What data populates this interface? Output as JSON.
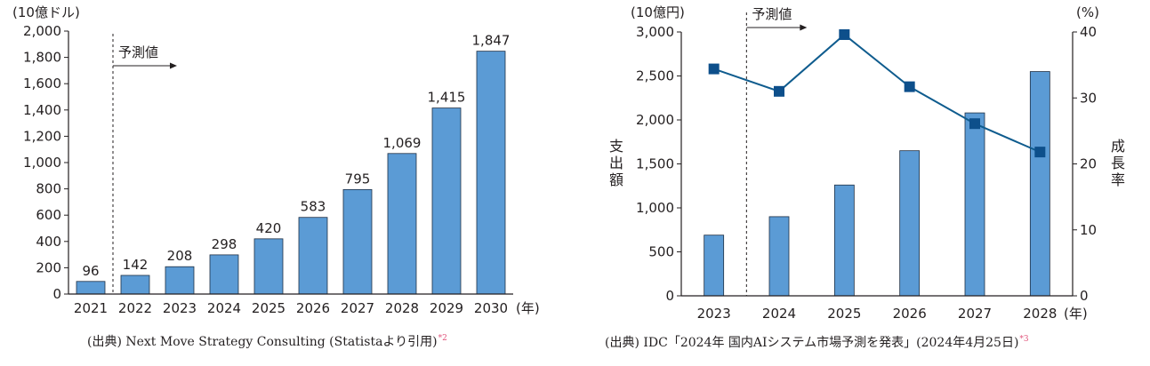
{
  "colors": {
    "bar": "#5b9bd5",
    "bar_stroke": "#1f2f44",
    "line": "#0f5c8e",
    "marker": "#0d4f8b",
    "text": "#231f20",
    "footnote": "#e0527a"
  },
  "chart_data": [
    {
      "type": "bar",
      "unit_label": "(10億ドル)",
      "categories": [
        "2021",
        "2022",
        "2023",
        "2024",
        "2025",
        "2026",
        "2027",
        "2028",
        "2029",
        "2030"
      ],
      "values": [
        96,
        142,
        208,
        298,
        420,
        583,
        795,
        1069,
        1415,
        1847
      ],
      "value_labels": [
        "96",
        "142",
        "208",
        "298",
        "420",
        "583",
        "795",
        "1,069",
        "1,415",
        "1,847"
      ],
      "x_unit": "(年)",
      "ylim": [
        0,
        2000
      ],
      "yticks": [
        0,
        200,
        400,
        600,
        800,
        1000,
        1200,
        1400,
        1600,
        1800,
        2000
      ],
      "ytick_labels": [
        "0",
        "200",
        "400",
        "600",
        "800",
        "1,000",
        "1,200",
        "1,400",
        "1,600",
        "1,800",
        "2,000"
      ],
      "forecast_label": "予測値",
      "forecast_from": "2022",
      "source": "(出典) Next Move Strategy Consulting (Statistaより引用)",
      "footnote": "*2"
    },
    {
      "type": "bar+line",
      "left_unit": "(10億円)",
      "right_unit": "(%)",
      "left_axis_label": "支出額",
      "right_axis_label": "成長率",
      "categories": [
        "2023",
        "2024",
        "2025",
        "2026",
        "2027",
        "2028"
      ],
      "series": [
        {
          "kind": "bar",
          "axis": "left",
          "values": [
            690,
            900,
            1260,
            1650,
            2080,
            2550
          ]
        },
        {
          "kind": "line",
          "axis": "right",
          "values": [
            34.4,
            31.0,
            39.6,
            31.7,
            26.1,
            21.8
          ]
        }
      ],
      "x_unit": "(年)",
      "ylim_left": [
        0,
        3000
      ],
      "yticks_left_labels": [
        "0",
        "500",
        "1,000",
        "1,500",
        "2,000",
        "2,500",
        "3,000"
      ],
      "ylim_right": [
        0,
        40
      ],
      "yticks_right_labels": [
        "0",
        "10",
        "20",
        "30",
        "40"
      ],
      "forecast_label": "予測値",
      "forecast_from": "2024",
      "source": "(出典) IDC「2024年 国内AIシステム市場予測を発表」(2024年4月25日)",
      "footnote": "*3"
    }
  ]
}
